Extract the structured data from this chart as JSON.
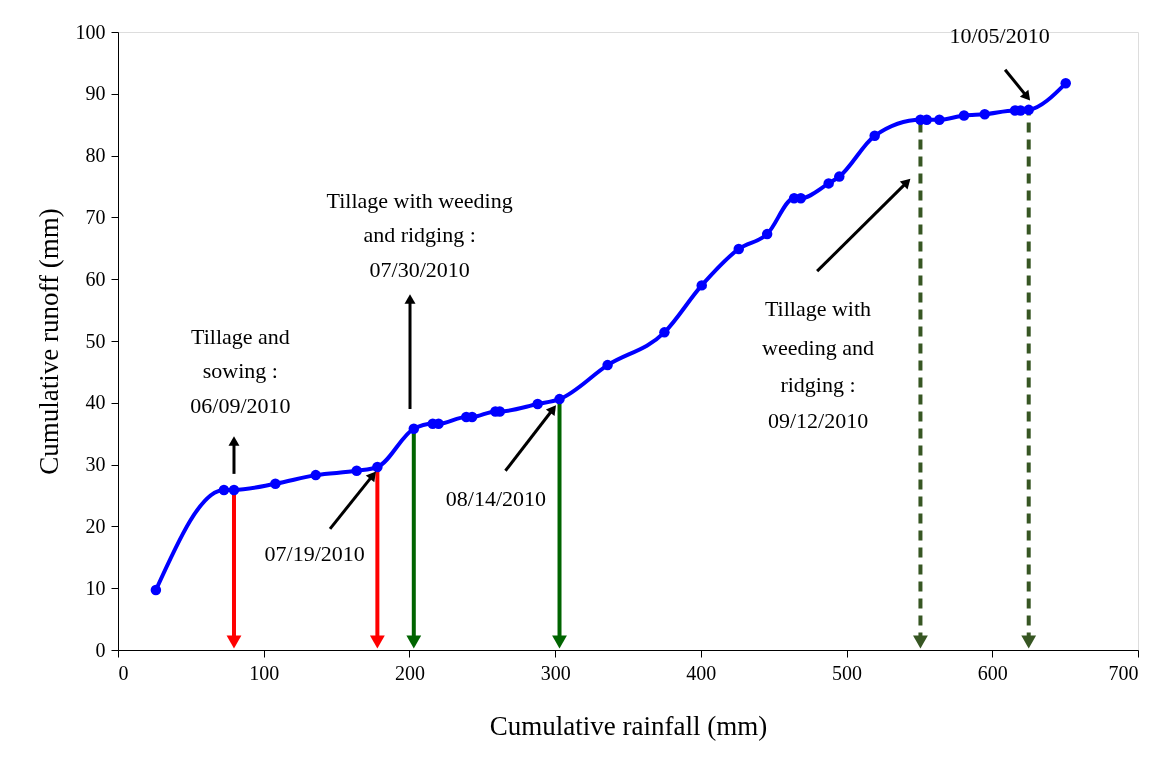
{
  "chart_data": {
    "type": "line",
    "xlabel": "Cumulative rainfall (mm)",
    "ylabel": "Cumulative runoff (mm)",
    "x": [
      26,
      72.7,
      79.6,
      108,
      135.7,
      163.8,
      178,
      203,
      216,
      220,
      239,
      243,
      259,
      262,
      288,
      303,
      336,
      375,
      400.6,
      426,
      445.5,
      464,
      468.6,
      487.7,
      495,
      519.3,
      550.7,
      555,
      563.7,
      580.6,
      594.8,
      615.6,
      619.4,
      625,
      650.4
    ],
    "series": [
      {
        "color": "#0000ff",
        "values": [
          9.7,
          25.9,
          25.9,
          26.9,
          28.3,
          29.0,
          29.6,
          35.8,
          36.6,
          36.6,
          37.7,
          37.7,
          38.6,
          38.6,
          39.8,
          40.6,
          46.1,
          51.4,
          59.0,
          64.9,
          67.3,
          73.1,
          73.1,
          75.5,
          76.6,
          83.2,
          85.8,
          85.8,
          85.8,
          86.5,
          86.7,
          87.3,
          87.3,
          87.4,
          91.7
        ]
      }
    ],
    "xlim": [
      0,
      700
    ],
    "xticks": [
      0,
      100,
      200,
      300,
      400,
      500,
      600,
      700
    ],
    "ylim": [
      0,
      100
    ],
    "yticks": [
      0,
      10,
      20,
      30,
      40,
      50,
      60,
      70,
      80,
      90,
      100
    ],
    "marker": "circle",
    "line_style": "solid",
    "grid": false,
    "ref_lines": [
      {
        "axis": "x",
        "value": 79.6,
        "color": "#ff0000",
        "line_style": "solid"
      },
      {
        "axis": "x",
        "value": 178,
        "color": "#ff0000",
        "line_style": "solid"
      },
      {
        "axis": "x",
        "value": 203,
        "color": "#006400",
        "line_style": "solid"
      },
      {
        "axis": "x",
        "value": 303,
        "color": "#006400",
        "line_style": "solid"
      },
      {
        "axis": "x",
        "value": 550.7,
        "color": "#375623",
        "line_style": "dashed"
      },
      {
        "axis": "x",
        "value": 625,
        "color": "#375623",
        "line_style": "dashed"
      }
    ],
    "annotations": [
      "Tillage and sowing : 06/09/2010",
      {
        "text": "07/19/2010",
        "x": 175,
        "y": 28.3
      },
      "Tillage with weeding and ridging : 07/30/2010",
      {
        "text": "08/14/2010",
        "x": 298.6,
        "y": 39
      },
      "Tillage with weeding and ridging : 09/12/2010",
      "10/05/2010"
    ]
  }
}
